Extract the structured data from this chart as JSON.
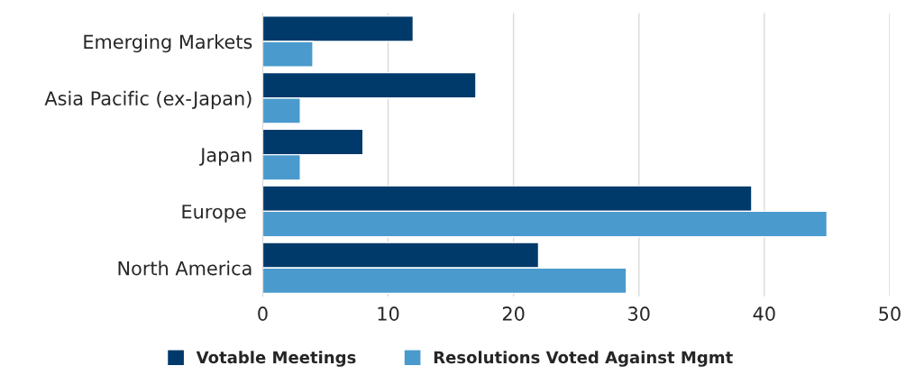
{
  "chart_data": {
    "type": "bar",
    "orientation": "horizontal",
    "categories": [
      "Emerging Markets",
      "Asia Pacific (ex-Japan)",
      "Japan",
      "Europe ",
      "North America"
    ],
    "series": [
      {
        "name": "Votable Meetings",
        "color": "#003a6b",
        "values": [
          12,
          17,
          8,
          39,
          22
        ]
      },
      {
        "name": "Resolutions Voted Against Mgmt",
        "color": "#4a9acd",
        "values": [
          4,
          3,
          3,
          45,
          29
        ]
      }
    ],
    "xlim": [
      0,
      50
    ],
    "xticks": [
      0,
      10,
      20,
      30,
      40,
      50
    ],
    "grid": "x",
    "legend": "bottom"
  }
}
